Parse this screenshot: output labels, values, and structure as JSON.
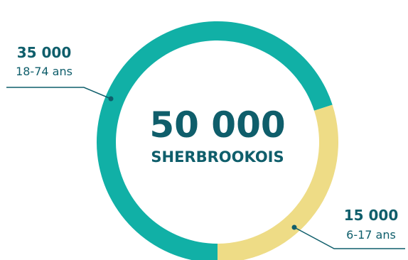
{
  "chart_data": {
    "type": "donut",
    "total": {
      "value": "50 000",
      "label": "SHERBROOKOIS"
    },
    "categories": [
      "18-74 ans",
      "6-17 ans"
    ],
    "values": [
      35000,
      15000
    ],
    "value_labels": [
      "35 000",
      "15 000"
    ],
    "colors": [
      "#11b0a6",
      "#eedc86"
    ],
    "text_color": "#0f5e6b"
  }
}
